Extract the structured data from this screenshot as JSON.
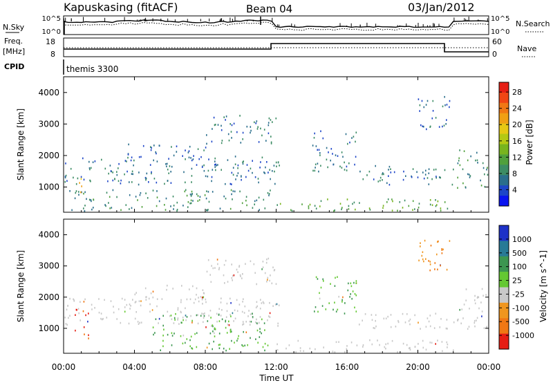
{
  "header": {
    "station": "Kapuskasing (fitACF)",
    "beam": "Beam 04",
    "date": "03/Jan/2012"
  },
  "top_panel": {
    "left_label": "N.Sky",
    "left_ticks": [
      "10^5",
      "10^0"
    ],
    "right_ticks": [
      "10^5",
      "10^0"
    ],
    "right_label": "N.Search"
  },
  "freq_panel": {
    "left_label_1": "Freq.",
    "left_label_2": "[MHz]",
    "left_ticks": [
      "18",
      "8"
    ],
    "right_ticks": [
      "60",
      "0"
    ],
    "right_label": "Nave"
  },
  "cpid_panel": {
    "label": "CPID",
    "program": "themis 3300"
  },
  "x_axis": {
    "ticks": [
      "00:00",
      "04:00",
      "08:00",
      "12:00",
      "16:00",
      "20:00",
      "00:00"
    ],
    "label": "Time UT"
  },
  "chart_data": [
    {
      "type": "heatmap",
      "name": "power",
      "ylabel": "Slant Range [km]",
      "yticks": [
        "1000",
        "2000",
        "3000",
        "4000"
      ],
      "ylim": [
        200,
        4500
      ],
      "xlim_hours": [
        0,
        24
      ],
      "colorbar": {
        "label": "Power [dB]",
        "ticks": [
          "4",
          "8",
          "12",
          "16",
          "20",
          "24",
          "28"
        ],
        "range": [
          0,
          30
        ],
        "colors": [
          "#0a14f0",
          "#1e46c8",
          "#2a6e8c",
          "#3c8c64",
          "#50a03c",
          "#78b41e",
          "#b4c814",
          "#e6c814",
          "#f0a014",
          "#f07814",
          "#f04614",
          "#e61e14"
        ]
      },
      "echo_regions": [
        {
          "t": [
            0.0,
            12.2
          ],
          "range": [
            1100,
            2000
          ],
          "level": 6
        },
        {
          "t": [
            3.5,
            8.0
          ],
          "range": [
            1900,
            2400
          ],
          "level": 5
        },
        {
          "t": [
            8.0,
            12.0
          ],
          "range": [
            2400,
            3300
          ],
          "level": 5
        },
        {
          "t": [
            0.3,
            12.0
          ],
          "range": [
            250,
            950
          ],
          "level": 8
        },
        {
          "t": [
            12.0,
            22.0
          ],
          "range": [
            250,
            650
          ],
          "level": 10
        },
        {
          "t": [
            14.0,
            16.5
          ],
          "range": [
            1500,
            2800
          ],
          "level": 7
        },
        {
          "t": [
            16.5,
            22.0
          ],
          "range": [
            1100,
            1700
          ],
          "level": 5
        },
        {
          "t": [
            20.0,
            21.8
          ],
          "range": [
            2800,
            3900
          ],
          "level": 5
        },
        {
          "t": [
            22.0,
            24.0
          ],
          "range": [
            1000,
            2200
          ],
          "level": 9
        },
        {
          "t": [
            0.8,
            1.3
          ],
          "range": [
            800,
            1300
          ],
          "level": 18
        }
      ]
    },
    {
      "type": "heatmap",
      "name": "velocity",
      "ylabel": "Slant Range [km]",
      "yticks": [
        "1000",
        "2000",
        "3000",
        "4000"
      ],
      "ylim": [
        200,
        4500
      ],
      "xlim_hours": [
        0,
        24
      ],
      "colorbar": {
        "label": "Velocity [m s^-1]",
        "ticks": [
          "1000",
          "500",
          "100",
          "25",
          "-25",
          "-100",
          "-500",
          "-1000"
        ],
        "colors": [
          "#1e32c8",
          "#287a96",
          "#3c9650",
          "#64c832",
          "#c8c8c8",
          "#f0961e",
          "#f07814",
          "#e61e14"
        ]
      },
      "echo_regions": [
        {
          "t": [
            0.0,
            12.2
          ],
          "range": [
            1100,
            2000
          ],
          "class": "-25..25"
        },
        {
          "t": [
            3.5,
            8.0
          ],
          "range": [
            1900,
            2400
          ],
          "class": "-25..25"
        },
        {
          "t": [
            8.0,
            12.0
          ],
          "range": [
            2400,
            3300
          ],
          "class": "-25..25"
        },
        {
          "t": [
            0.6,
            1.4
          ],
          "range": [
            700,
            1700
          ],
          "class": "-500..-1000"
        },
        {
          "t": [
            5.0,
            11.5
          ],
          "range": [
            300,
            1500
          ],
          "class": "100..500"
        },
        {
          "t": [
            12.0,
            22.0
          ],
          "range": [
            250,
            650
          ],
          "class": "-25..25"
        },
        {
          "t": [
            14.0,
            16.5
          ],
          "range": [
            1500,
            2700
          ],
          "class": "100..500"
        },
        {
          "t": [
            16.5,
            22.0
          ],
          "range": [
            1000,
            1500
          ],
          "class": "-25..25"
        },
        {
          "t": [
            20.0,
            21.8
          ],
          "range": [
            2800,
            3900
          ],
          "class": "-100..-500"
        },
        {
          "t": [
            22.0,
            24.0
          ],
          "range": [
            1000,
            2300
          ],
          "class": "-25..25"
        }
      ]
    }
  ]
}
